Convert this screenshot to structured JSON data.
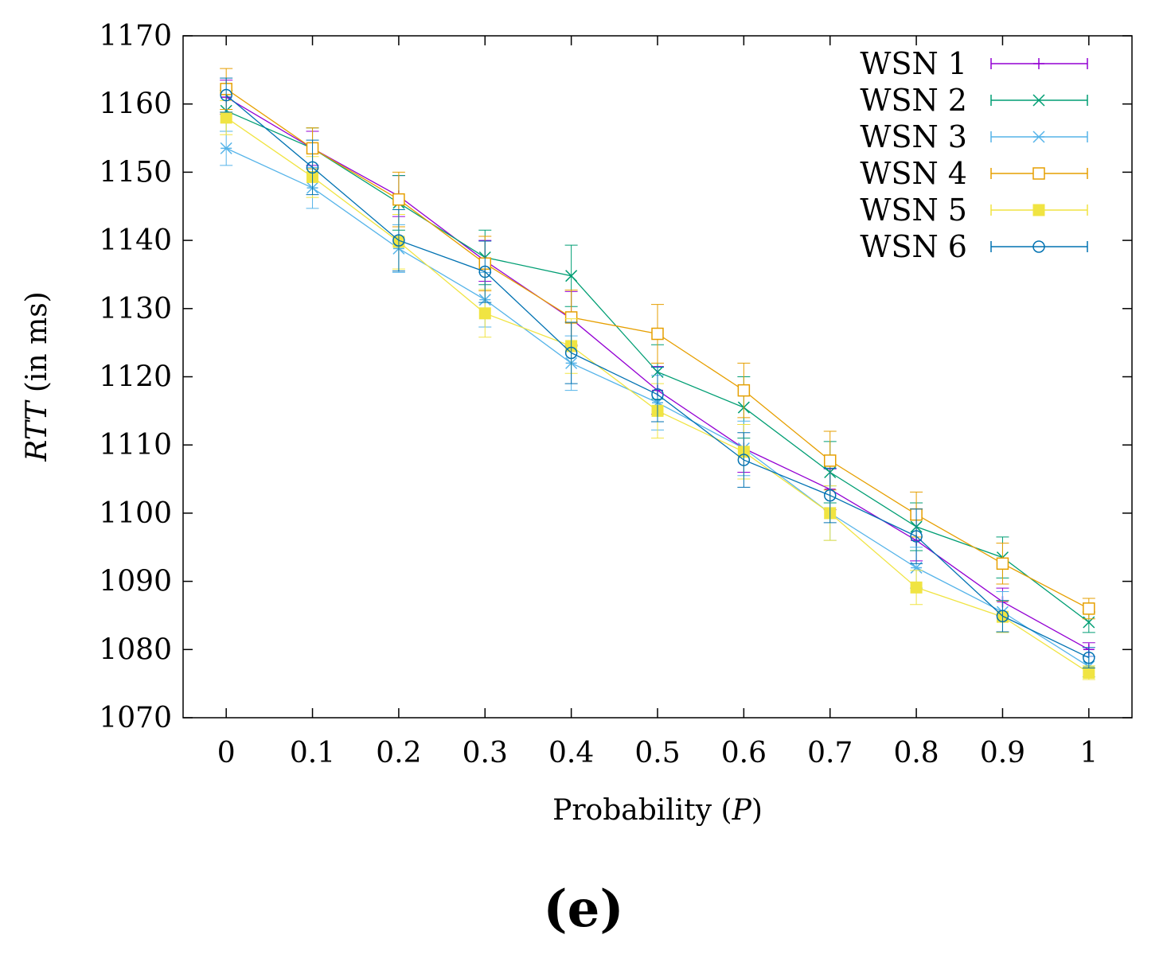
{
  "chart_data": {
    "type": "line",
    "title": "",
    "xlabel": "Probability (P)",
    "xlabel_parts": {
      "prefix": "Probability (",
      "var": "P",
      "suffix": ")"
    },
    "ylabel": "RTT (in ms)",
    "ylabel_parts": {
      "var": "RTT",
      "suffix": " (in ms)"
    },
    "x": [
      0,
      0.1,
      0.2,
      0.3,
      0.4,
      0.5,
      0.6,
      0.7,
      0.8,
      0.9,
      1
    ],
    "x_tick_labels": [
      "0",
      "0.1",
      "0.2",
      "0.3",
      "0.4",
      "0.5",
      "0.6",
      "0.7",
      "0.8",
      "0.9",
      "1"
    ],
    "xlim": [
      -0.05,
      1.05
    ],
    "ylim": [
      1070,
      1170
    ],
    "y_ticks": [
      1070,
      1080,
      1090,
      1100,
      1110,
      1120,
      1130,
      1140,
      1150,
      1160,
      1170
    ],
    "legend_position": "top-right",
    "grid": false,
    "series": [
      {
        "name": "WSN 1",
        "color": "#9400d3",
        "marker": "plus",
        "values": [
          1161,
          1153.5,
          1146.5,
          1137,
          1128.5,
          1118,
          1109.5,
          1103.5,
          1096,
          1087,
          1080
        ],
        "errors": [
          2.5,
          2.5,
          3,
          3,
          4,
          3.5,
          3.5,
          3,
          3,
          2,
          1
        ]
      },
      {
        "name": "WSN 2",
        "color": "#009e73",
        "marker": "cross",
        "values": [
          1159,
          1153.5,
          1145.5,
          1137.5,
          1134.8,
          1120.7,
          1115.5,
          1106,
          1098,
          1093.5,
          1084
        ],
        "errors": [
          3,
          3,
          4,
          4,
          4.5,
          4,
          4.5,
          4.5,
          3.5,
          3,
          1.5
        ]
      },
      {
        "name": "WSN 3",
        "color": "#56b4e9",
        "marker": "star",
        "values": [
          1153.5,
          1147.7,
          1138.8,
          1131.3,
          1122,
          1116.2,
          1109.5,
          1100,
          1092,
          1085.5,
          1077.5
        ],
        "errors": [
          2.5,
          3,
          3.5,
          4,
          4,
          4,
          4,
          4,
          3,
          3,
          1.5
        ]
      },
      {
        "name": "WSN 4",
        "color": "#e69f00",
        "marker": "open-square",
        "values": [
          1162.2,
          1153.5,
          1146,
          1136.6,
          1128.7,
          1126.3,
          1118,
          1107.7,
          1099.8,
          1092.6,
          1086
        ],
        "errors": [
          3,
          3,
          4,
          4,
          4,
          4.3,
          4,
          4.3,
          3.3,
          3,
          1.5
        ]
      },
      {
        "name": "WSN 5",
        "color": "#f0e442",
        "marker": "filled-square",
        "values": [
          1158,
          1149.3,
          1139.8,
          1129.3,
          1124.5,
          1115,
          1109,
          1100,
          1089.1,
          1084.8,
          1076.6
        ],
        "errors": [
          2.5,
          3,
          4,
          3.5,
          4,
          4,
          4,
          4,
          2.5,
          2.3,
          1
        ]
      },
      {
        "name": "WSN 6",
        "color": "#0072b2",
        "marker": "open-circle",
        "values": [
          1161.3,
          1150.7,
          1140,
          1135.4,
          1123.5,
          1117.4,
          1107.8,
          1102.6,
          1096.6,
          1084.9,
          1078.8
        ],
        "errors": [
          2.5,
          4,
          4.5,
          4.5,
          4.5,
          4,
          4,
          4,
          4,
          2.3,
          1.5
        ]
      }
    ]
  },
  "panel_label": "(e)"
}
